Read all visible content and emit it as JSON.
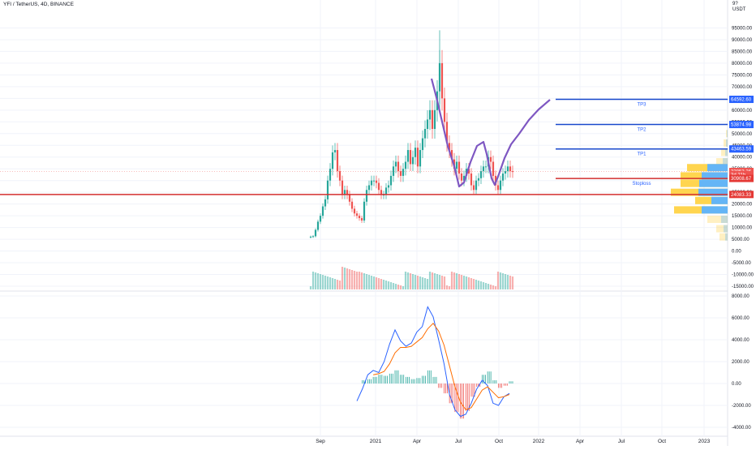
{
  "header": {
    "title": "YFI / TetherUS, 4D, BINANCE",
    "currency_top": "9?",
    "currency_unit": "USDT"
  },
  "colors": {
    "up": "#26a69a",
    "down": "#ef5350",
    "target_line": "#1848cc",
    "stoploss_line": "#d32f2f",
    "path": "#7e57c2",
    "macd": "#2962ff",
    "signal": "#ff6d00",
    "vp_yellow": "#ffd54f",
    "vp_blue": "#64b5f6",
    "grid": "#f0f3fa"
  },
  "chart_data": [
    {
      "type": "candlestick",
      "title": "YFI / TetherUS, 4D, BINANCE",
      "ylim": [
        -15000,
        100000
      ],
      "yticks": [
        "95000.00",
        "90000.00",
        "85000.00",
        "80000.00",
        "75000.00",
        "70000.00",
        "65000.00",
        "60000.00",
        "55000.00",
        "50000.00",
        "45000.00",
        "40000.00",
        "35000.00",
        "30000.00",
        "25000.00",
        "20000.00",
        "15000.00",
        "10000.00",
        "5000.00",
        "0.00",
        "-5000.00",
        "-10000.00",
        "-15000.00"
      ],
      "xticks": [
        "Sep",
        "2021",
        "Apr",
        "Jul",
        "Oct",
        "2022",
        "Apr",
        "Jul",
        "Oct",
        "2023"
      ],
      "price_labels": [
        {
          "text": "64592.60",
          "value": 64592.6,
          "kind": "target"
        },
        {
          "text": "53874.98",
          "value": 53874.98,
          "kind": "target"
        },
        {
          "text": "43463.59",
          "value": 43463.59,
          "kind": "target"
        },
        {
          "text": "33853.26",
          "value": 33853.26,
          "kind": "last"
        },
        {
          "text": "3d 21h",
          "value": 32500,
          "kind": "countdown"
        },
        {
          "text": "30908.67",
          "value": 30908.67,
          "kind": "stop"
        },
        {
          "text": "24083.33",
          "value": 24083.33,
          "kind": "support"
        }
      ],
      "annotations": [
        {
          "text": "TP3",
          "value": 64592.6
        },
        {
          "text": "TP2",
          "value": 53874.98
        },
        {
          "text": "TP1",
          "value": 43463.59
        },
        {
          "text": "Stoploss",
          "value": 30908.67
        }
      ],
      "closes": [
        6100,
        6300,
        9000,
        12500,
        15000,
        19000,
        22000,
        30000,
        35000,
        42000,
        43000,
        34000,
        30000,
        24000,
        26000,
        24000,
        21000,
        18000,
        16000,
        15000,
        14000,
        13000,
        21000,
        26000,
        28000,
        30000,
        30000,
        29000,
        26000,
        24000,
        24000,
        27000,
        28000,
        32000,
        36000,
        38000,
        34000,
        32000,
        35000,
        38000,
        43000,
        37000,
        40000,
        44000,
        36000,
        43000,
        48000,
        52000,
        56000,
        60000,
        52000,
        60000,
        68000,
        80000,
        65000,
        55000,
        46000,
        43000,
        39000,
        35000,
        38000,
        33000,
        30000,
        32000,
        35000,
        33000,
        28000,
        26000,
        30000,
        31000,
        34000,
        36000,
        36000,
        40000,
        38000,
        32000,
        28000,
        26000,
        30000,
        33000,
        34000,
        36000,
        34000,
        33853
      ]
    },
    {
      "type": "line",
      "name": "MACD",
      "ylim": [
        -4000,
        8000
      ],
      "yticks": [
        "8000.00",
        "6000.00",
        "4000.00",
        "2000.00",
        "0.00",
        "-2000.00",
        "-4000.00"
      ],
      "series": [
        {
          "name": "",
          "values": [
            -1600,
            -500,
            800,
            1200,
            1000,
            2000,
            3600,
            4900,
            3900,
            3400,
            3700,
            4700,
            5200,
            7000,
            6100,
            4000,
            1800,
            -1000,
            -2400,
            -3000,
            -2800,
            -1800,
            -500,
            300,
            -200,
            -1800,
            -2000,
            -1200,
            -900
          ]
        },
        {
          "name": "",
          "values": [
            null,
            null,
            null,
            800,
            900,
            1100,
            1800,
            2800,
            3300,
            3300,
            3400,
            3800,
            4200,
            5000,
            5500,
            4800,
            3500,
            1600,
            -300,
            -1700,
            -2400,
            -2200,
            -1400,
            -600,
            -300,
            -800,
            -1300,
            -1200,
            -1000
          ]
        }
      ]
    }
  ]
}
